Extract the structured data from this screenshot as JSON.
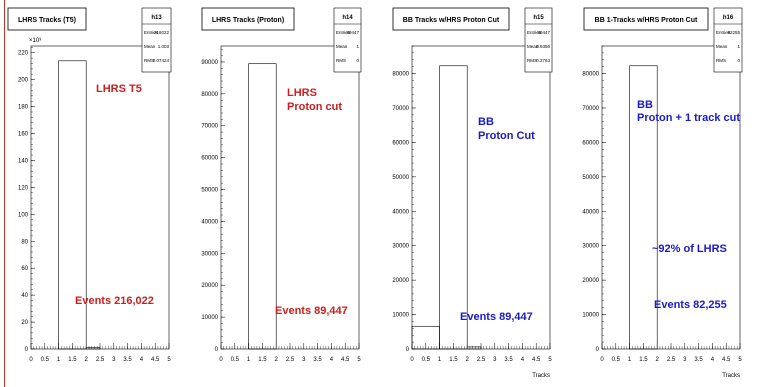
{
  "colors": {
    "red": "#cc1f1f",
    "blue": "#1a1acc"
  },
  "chart_data": [
    {
      "type": "bar",
      "title": "LHRS Tracks (T5)",
      "xlabel": "",
      "ylabel": "",
      "y_exponent": "×10³",
      "xlim": [
        0,
        5
      ],
      "ylim": [
        0,
        225
      ],
      "xticks": [
        "0",
        "0.5",
        "1",
        "1.5",
        "2",
        "2.5",
        "3",
        "3.5",
        "4",
        "4.5",
        "5"
      ],
      "yticks": [
        "0",
        "20",
        "40",
        "60",
        "80",
        "100",
        "120",
        "140",
        "160",
        "180",
        "200",
        "220"
      ],
      "bins": [
        {
          "x0": 1,
          "x1": 2,
          "value": 214
        },
        {
          "x0": 2,
          "x1": 2.5,
          "value": 1
        }
      ],
      "stats": {
        "name": "h13",
        "rows": [
          {
            "label": "Entries",
            "value": "216022"
          },
          {
            "label": "Mean",
            "value": "1.003"
          },
          {
            "label": "RMS",
            "value": "0.07424"
          }
        ]
      },
      "annotations": [
        {
          "text": "LHRS T5",
          "color": "red",
          "pos": "upper"
        },
        {
          "text": "Events 216,022",
          "color": "red",
          "pos": "lower"
        }
      ]
    },
    {
      "type": "bar",
      "title": "LHRS Tracks (Proton)",
      "xlabel": "",
      "ylabel": "",
      "xlim": [
        0,
        5
      ],
      "ylim": [
        0,
        95000
      ],
      "xticks": [
        "0",
        "0.5",
        "1",
        "1.5",
        "2",
        "2.5",
        "3",
        "3.5",
        "4",
        "4.5",
        "5"
      ],
      "yticks": [
        "0",
        "10000",
        "20000",
        "30000",
        "40000",
        "50000",
        "60000",
        "70000",
        "80000",
        "90000"
      ],
      "bins": [
        {
          "x0": 1,
          "x1": 2,
          "value": 89447
        }
      ],
      "stats": {
        "name": "h14",
        "rows": [
          {
            "label": "Entries",
            "value": "89447"
          },
          {
            "label": "Mean",
            "value": "1"
          },
          {
            "label": "RMS",
            "value": "0"
          }
        ]
      },
      "annotations": [
        {
          "text": "LHRS",
          "color": "red",
          "pos": "upper"
        },
        {
          "text": "Proton cut",
          "color": "red",
          "pos": "upper2"
        },
        {
          "text": "Events 89,447",
          "color": "red",
          "pos": "lower"
        }
      ]
    },
    {
      "type": "bar",
      "title": "BB Tracks w/HRS Proton Cut",
      "xlabel": "Tracks",
      "ylabel": "",
      "xlim": [
        0,
        5
      ],
      "ylim": [
        0,
        88000
      ],
      "xticks": [
        "0",
        "0.5",
        "1",
        "1.5",
        "2",
        "2.5",
        "3",
        "3.5",
        "4",
        "4.5",
        "5"
      ],
      "yticks": [
        "0",
        "10000",
        "20000",
        "30000",
        "40000",
        "50000",
        "60000",
        "70000",
        "80000"
      ],
      "bins": [
        {
          "x0": 0,
          "x1": 1,
          "value": 6600
        },
        {
          "x0": 1,
          "x1": 2,
          "value": 82255
        },
        {
          "x0": 2,
          "x1": 2.5,
          "value": 600
        }
      ],
      "stats": {
        "name": "h15",
        "rows": [
          {
            "label": "Entries",
            "value": "89447"
          },
          {
            "label": "Mean",
            "value": "0.9356"
          },
          {
            "label": "RMS",
            "value": "0.2763"
          }
        ]
      },
      "annotations": [
        {
          "text": "BB",
          "color": "blue",
          "pos": "upper"
        },
        {
          "text": "Proton Cut",
          "color": "blue",
          "pos": "upper2"
        },
        {
          "text": "Events 89,447",
          "color": "blue",
          "pos": "lower"
        }
      ]
    },
    {
      "type": "bar",
      "title": "BB 1-Tracks w/HRS Proton Cut",
      "xlabel": "Tracks",
      "ylabel": "",
      "xlim": [
        0,
        5
      ],
      "ylim": [
        0,
        88000
      ],
      "xticks": [
        "0",
        "0.5",
        "1",
        "1.5",
        "2",
        "2.5",
        "3",
        "3.5",
        "4",
        "4.5",
        "5"
      ],
      "yticks": [
        "0",
        "10000",
        "20000",
        "30000",
        "40000",
        "50000",
        "60000",
        "70000",
        "80000"
      ],
      "bins": [
        {
          "x0": 1,
          "x1": 2,
          "value": 82255
        }
      ],
      "stats": {
        "name": "h16",
        "rows": [
          {
            "label": "Entries",
            "value": "82255"
          },
          {
            "label": "Mean",
            "value": "1"
          },
          {
            "label": "RMS",
            "value": "0"
          }
        ]
      },
      "annotations": [
        {
          "text": "BB",
          "color": "blue",
          "pos": "upper"
        },
        {
          "text": "Proton + 1 track cut",
          "color": "blue",
          "pos": "upper2"
        },
        {
          "text": "~92% of LHRS",
          "color": "blue",
          "pos": "middle"
        },
        {
          "text": "Events 82,255",
          "color": "blue",
          "pos": "lower"
        }
      ]
    }
  ]
}
